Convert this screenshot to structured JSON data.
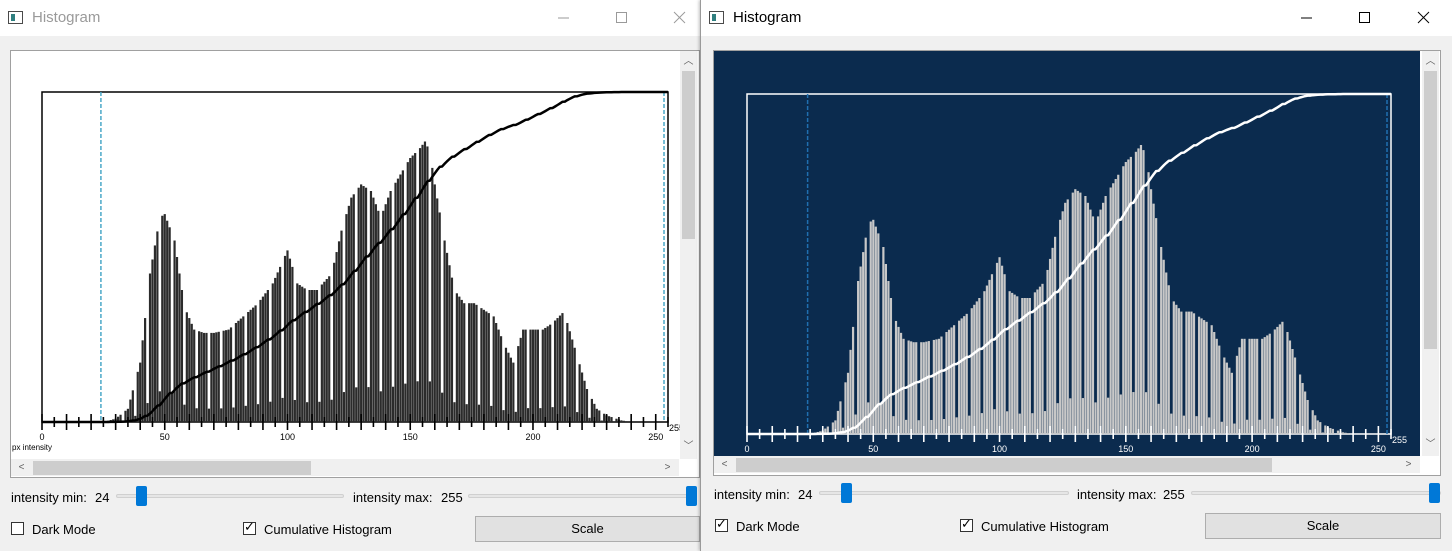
{
  "windows": [
    {
      "id": "left",
      "title": "Histogram",
      "state": "inactive",
      "controls": {
        "intensity_min_label": "intensity min:",
        "intensity_min_value": "24",
        "intensity_max_label": "intensity max:",
        "intensity_max_value": "255",
        "dark_mode_label": "Dark Mode",
        "dark_mode_checked": false,
        "cumulative_label": "Cumulative Histogram",
        "cumulative_checked": true,
        "scale_button": "Scale"
      },
      "chart_data": {
        "type": "bar",
        "xlabel": "px intensity",
        "x_ticks": [
          "0",
          "50",
          "100",
          "150",
          "200",
          "250"
        ],
        "end_label": "255",
        "xlim": [
          0,
          255
        ],
        "min_marker": 24,
        "max_marker": 255,
        "overlay": "cumulative",
        "theme": "light"
      }
    },
    {
      "id": "right",
      "title": "Histogram",
      "state": "active",
      "controls": {
        "intensity_min_label": "intensity min:",
        "intensity_min_value": "24",
        "intensity_max_label": "intensity max:",
        "intensity_max_value": "255",
        "dark_mode_label": "Dark Mode",
        "dark_mode_checked": true,
        "cumulative_label": "Cumulative Histogram",
        "cumulative_checked": true,
        "scale_button": "Scale"
      },
      "chart_data": {
        "type": "bar",
        "xlabel": "",
        "x_ticks": [
          "0",
          "50",
          "100",
          "150",
          "200",
          "250"
        ],
        "end_label": "255",
        "xlim": [
          0,
          255
        ],
        "min_marker": 24,
        "max_marker": 255,
        "overlay": "cumulative",
        "theme": "dark"
      }
    }
  ],
  "histogram_bins": {
    "description": "relative counts per intensity value (0-1 scale of plot height)",
    "keypoints": [
      [
        0,
        0
      ],
      [
        25,
        0
      ],
      [
        30,
        0.01
      ],
      [
        35,
        0.04
      ],
      [
        40,
        0.18
      ],
      [
        44,
        0.45
      ],
      [
        48,
        0.62
      ],
      [
        50,
        0.63
      ],
      [
        54,
        0.55
      ],
      [
        58,
        0.35
      ],
      [
        62,
        0.28
      ],
      [
        66,
        0.27
      ],
      [
        70,
        0.27
      ],
      [
        76,
        0.28
      ],
      [
        82,
        0.32
      ],
      [
        88,
        0.36
      ],
      [
        94,
        0.42
      ],
      [
        100,
        0.52
      ],
      [
        104,
        0.42
      ],
      [
        108,
        0.4
      ],
      [
        112,
        0.4
      ],
      [
        118,
        0.45
      ],
      [
        122,
        0.58
      ],
      [
        126,
        0.68
      ],
      [
        130,
        0.72
      ],
      [
        134,
        0.7
      ],
      [
        138,
        0.62
      ],
      [
        142,
        0.7
      ],
      [
        146,
        0.75
      ],
      [
        150,
        0.8
      ],
      [
        154,
        0.83
      ],
      [
        156,
        0.85
      ],
      [
        158,
        0.82
      ],
      [
        160,
        0.72
      ],
      [
        164,
        0.55
      ],
      [
        168,
        0.4
      ],
      [
        172,
        0.36
      ],
      [
        176,
        0.36
      ],
      [
        180,
        0.34
      ],
      [
        184,
        0.32
      ],
      [
        188,
        0.24
      ],
      [
        192,
        0.18
      ],
      [
        196,
        0.28
      ],
      [
        200,
        0.28
      ],
      [
        204,
        0.28
      ],
      [
        208,
        0.3
      ],
      [
        212,
        0.33
      ],
      [
        214,
        0.3
      ],
      [
        218,
        0.2
      ],
      [
        222,
        0.1
      ],
      [
        226,
        0.04
      ],
      [
        230,
        0.02
      ],
      [
        236,
        0.005
      ],
      [
        240,
        0
      ],
      [
        255,
        0
      ]
    ]
  }
}
